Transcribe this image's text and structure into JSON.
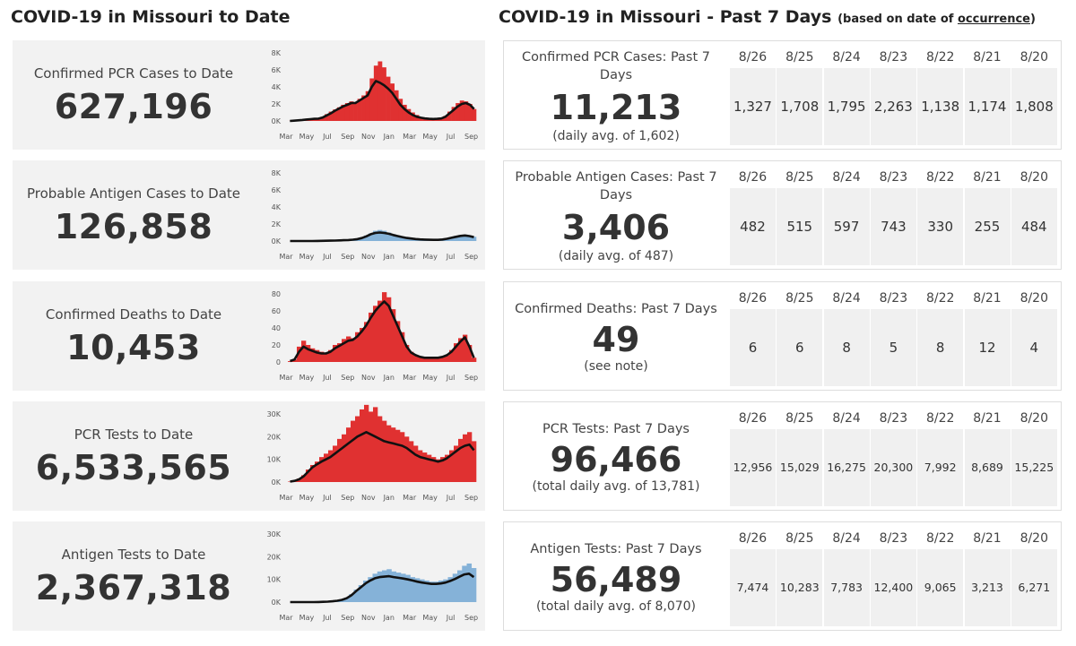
{
  "left_header": "COVID-19 in Missouri to Date",
  "right_header": "COVID-19 in Missouri - Past 7 Days",
  "right_header_sub": {
    "prefix": "(based on date of ",
    "link": "occurrence",
    "suffix": ")"
  },
  "dates": [
    "8/26",
    "8/25",
    "8/24",
    "8/23",
    "8/22",
    "8/21",
    "8/20"
  ],
  "x_ticks": [
    "Mar",
    "May",
    "Jul",
    "Sep",
    "Nov",
    "Jan",
    "Mar",
    "May",
    "Jul",
    "Sep"
  ],
  "colors": {
    "red": "#e03131",
    "blue": "#85b2d8",
    "line": "#111111",
    "card_bg": "#f2f2f2"
  },
  "left": [
    {
      "title": "Confirmed PCR Cases to Date",
      "value": "627,196",
      "chart_data": {
        "type": "bar",
        "color": "red",
        "yticks": [
          "8K",
          "6K",
          "4K",
          "2K",
          "0K"
        ],
        "ylim": [
          0,
          8000
        ],
        "x_months": [
          0,
          2,
          4,
          6,
          8,
          10,
          12,
          14,
          16,
          18
        ],
        "bars": [
          5,
          40,
          90,
          150,
          200,
          240,
          280,
          300,
          500,
          800,
          1100,
          1350,
          1600,
          1900,
          2100,
          2300,
          2200,
          2600,
          3000,
          3500,
          5000,
          6500,
          7000,
          6300,
          5200,
          4400,
          3600,
          2600,
          1900,
          1400,
          1000,
          700,
          450,
          300,
          250,
          230,
          260,
          330,
          600,
          1100,
          1650,
          2100,
          2400,
          2300,
          2000,
          1400
        ],
        "line": [
          5,
          30,
          70,
          120,
          170,
          210,
          250,
          270,
          400,
          650,
          900,
          1200,
          1450,
          1700,
          1900,
          2100,
          2100,
          2400,
          2700,
          3000,
          4000,
          4700,
          4500,
          4200,
          3800,
          3300,
          2600,
          1900,
          1400,
          1000,
          700,
          500,
          380,
          300,
          250,
          230,
          250,
          300,
          500,
          900,
          1300,
          1700,
          2000,
          2100,
          1900,
          1400
        ]
      }
    },
    {
      "title": "Probable Antigen Cases to Date",
      "value": "126,858",
      "chart_data": {
        "type": "bar",
        "color": "blue",
        "yticks": [
          "8K",
          "6K",
          "4K",
          "2K",
          "0K"
        ],
        "ylim": [
          0,
          8000
        ],
        "x_months": [
          0,
          2,
          4,
          6,
          8,
          10,
          12,
          14,
          16,
          18
        ],
        "bars": [
          0,
          0,
          0,
          0,
          0,
          5,
          10,
          20,
          30,
          40,
          60,
          80,
          100,
          140,
          180,
          250,
          400,
          650,
          900,
          1200,
          1300,
          1200,
          1000,
          800,
          650,
          500,
          400,
          300,
          250,
          200,
          180,
          160,
          140,
          150,
          200,
          300,
          450,
          600,
          700,
          750,
          650,
          500
        ],
        "line": [
          0,
          0,
          0,
          0,
          0,
          5,
          10,
          20,
          30,
          40,
          50,
          70,
          90,
          120,
          160,
          220,
          350,
          550,
          800,
          950,
          1000,
          950,
          850,
          700,
          580,
          460,
          360,
          290,
          230,
          190,
          170,
          150,
          140,
          140,
          180,
          260,
          380,
          500,
          600,
          650,
          580,
          450
        ]
      }
    },
    {
      "title": "Confirmed Deaths to Date",
      "value": "10,453",
      "chart_data": {
        "type": "bar",
        "color": "red",
        "yticks": [
          "80",
          "60",
          "40",
          "20",
          "0"
        ],
        "ylim": [
          0,
          80
        ],
        "x_months": [
          0,
          2,
          4,
          6,
          8,
          10,
          12,
          14,
          16,
          18
        ],
        "bars": [
          1,
          3,
          18,
          25,
          20,
          16,
          14,
          12,
          10,
          14,
          20,
          22,
          27,
          30,
          28,
          35,
          40,
          47,
          58,
          66,
          72,
          82,
          76,
          62,
          48,
          35,
          20,
          12,
          8,
          6,
          5,
          5,
          6,
          5,
          6,
          8,
          14,
          22,
          28,
          32,
          20,
          5
        ],
        "line": [
          1,
          3,
          12,
          18,
          15,
          13,
          11,
          10,
          10,
          12,
          16,
          19,
          22,
          25,
          26,
          30,
          36,
          43,
          52,
          60,
          66,
          71,
          66,
          54,
          42,
          30,
          18,
          11,
          8,
          6,
          5,
          5,
          5,
          5,
          6,
          8,
          12,
          18,
          24,
          29,
          18,
          5
        ]
      }
    },
    {
      "title": "PCR Tests to Date",
      "value": "6,533,565",
      "chart_data": {
        "type": "bar",
        "color": "red",
        "yticks": [
          "30K",
          "20K",
          "10K",
          "0K"
        ],
        "ylim": [
          0,
          30000
        ],
        "x_months": [
          0,
          2,
          4,
          6,
          8,
          10,
          12,
          14,
          16,
          18
        ],
        "bars": [
          200,
          600,
          1500,
          3000,
          5500,
          7500,
          9000,
          11000,
          12500,
          14000,
          16000,
          19000,
          21000,
          24000,
          27000,
          29000,
          32000,
          34000,
          31000,
          33000,
          29000,
          27000,
          25000,
          24000,
          23000,
          22000,
          20000,
          18000,
          16000,
          14000,
          13000,
          12000,
          11000,
          10000,
          11000,
          12000,
          14000,
          16000,
          19000,
          21000,
          22000,
          18000
        ],
        "line": [
          200,
          500,
          1200,
          2500,
          4500,
          6500,
          7800,
          9000,
          10000,
          11000,
          12500,
          14000,
          15500,
          17000,
          18500,
          20000,
          21000,
          22000,
          21000,
          20000,
          19000,
          18000,
          17500,
          17000,
          16500,
          16000,
          15000,
          13500,
          12000,
          11000,
          10500,
          10000,
          9500,
          9000,
          9500,
          10500,
          12000,
          13500,
          15000,
          16000,
          16500,
          14000
        ]
      }
    },
    {
      "title": "Antigen Tests to Date",
      "value": "2,367,318",
      "chart_data": {
        "type": "bar",
        "color": "blue",
        "yticks": [
          "30K",
          "20K",
          "10K",
          "0K"
        ],
        "ylim": [
          0,
          30000
        ],
        "x_months": [
          0,
          2,
          4,
          6,
          8,
          10,
          12,
          14,
          16,
          18
        ],
        "bars": [
          0,
          0,
          0,
          0,
          0,
          0,
          50,
          100,
          200,
          400,
          700,
          1200,
          2000,
          3500,
          5500,
          7500,
          9500,
          11000,
          12500,
          13500,
          14000,
          14500,
          13500,
          13000,
          12500,
          12000,
          11000,
          10500,
          10000,
          9500,
          9000,
          9000,
          9500,
          10000,
          11000,
          12500,
          14000,
          16000,
          17000,
          15000
        ],
        "line": [
          0,
          0,
          0,
          0,
          0,
          0,
          50,
          100,
          180,
          350,
          600,
          1000,
          1700,
          3000,
          4800,
          6500,
          8200,
          9500,
          10500,
          11000,
          11200,
          11400,
          11000,
          10700,
          10400,
          10000,
          9500,
          9000,
          8600,
          8300,
          8000,
          8000,
          8200,
          8600,
          9300,
          10200,
          11200,
          12200,
          12500,
          11000
        ]
      }
    }
  ],
  "right": [
    {
      "title": "Confirmed PCR Cases: Past 7 Days",
      "value": "11,213",
      "note": "(daily avg. of 1,602)",
      "values": [
        "1,327",
        "1,708",
        "1,795",
        "2,263",
        "1,138",
        "1,174",
        "1,808"
      ]
    },
    {
      "title": "Probable Antigen Cases: Past 7 Days",
      "value": "3,406",
      "note": "(daily avg. of 487)",
      "values": [
        "482",
        "515",
        "597",
        "743",
        "330",
        "255",
        "484"
      ]
    },
    {
      "title": "Confirmed Deaths: Past 7 Days",
      "value": "49",
      "note": "(see note)",
      "values": [
        "6",
        "6",
        "8",
        "5",
        "8",
        "12",
        "4"
      ]
    },
    {
      "title": "PCR Tests: Past 7 Days",
      "value": "96,466",
      "note": "(total daily avg. of 13,781)",
      "values": [
        "12,956",
        "15,029",
        "16,275",
        "20,300",
        "7,992",
        "8,689",
        "15,225"
      ]
    },
    {
      "title": "Antigen Tests: Past 7 Days",
      "value": "56,489",
      "note": "(total daily avg. of 8,070)",
      "values": [
        "7,474",
        "10,283",
        "7,783",
        "12,400",
        "9,065",
        "3,213",
        "6,271"
      ]
    }
  ]
}
